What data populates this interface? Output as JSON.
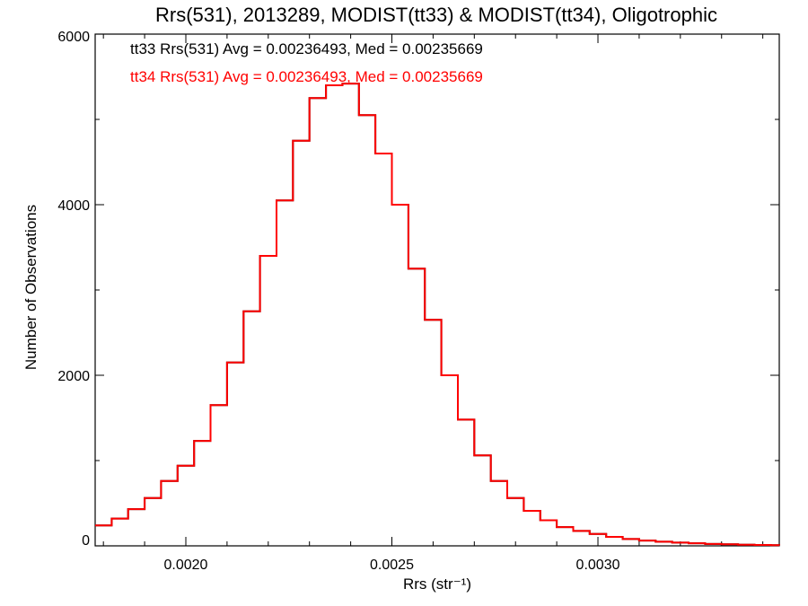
{
  "chart_data": {
    "type": "line",
    "title": "Rrs(531), 2013289, MODIST(tt33) & MODIST(tt34), Oligotrophic",
    "xlabel": "Rrs (str⁻¹)",
    "ylabel": "Number of Observations",
    "xlim": [
      0.00178,
      0.00344
    ],
    "ylim": [
      0,
      6000
    ],
    "x_ticks": [
      0.002,
      0.0025,
      0.003
    ],
    "x_tick_labels": [
      "0.0020",
      "0.0025",
      "0.0030"
    ],
    "y_ticks": [
      0,
      2000,
      4000,
      6000
    ],
    "y_tick_labels": [
      "0",
      "2000",
      "4000",
      "6000"
    ],
    "grid": false,
    "histogram_style": "step",
    "annotations": [
      {
        "text": "tt33 Rrs(531) Avg = 0.00236493, Med = 0.00235669",
        "color": "#000000"
      },
      {
        "text": "tt34 Rrs(531) Avg = 0.00236493, Med = 0.00235669",
        "color": "#ff0000"
      }
    ],
    "x": [
      0.00178,
      0.00182,
      0.00186,
      0.0019,
      0.00194,
      0.00198,
      0.00202,
      0.00206,
      0.0021,
      0.00214,
      0.00218,
      0.00222,
      0.00226,
      0.0023,
      0.00234,
      0.00238,
      0.00242,
      0.00246,
      0.0025,
      0.00254,
      0.00258,
      0.00262,
      0.00266,
      0.0027,
      0.00274,
      0.00278,
      0.00282,
      0.00286,
      0.0029,
      0.00294,
      0.00298,
      0.00302,
      0.00306,
      0.0031,
      0.00314,
      0.00318,
      0.00322,
      0.00326,
      0.0033,
      0.00334,
      0.00338,
      0.00342,
      0.00344
    ],
    "series": [
      {
        "color": "#000000",
        "values": [
          240,
          320,
          430,
          560,
          760,
          940,
          1230,
          1650,
          2150,
          2750,
          3400,
          4050,
          4750,
          5250,
          5400,
          5420,
          5050,
          4600,
          4000,
          3250,
          2650,
          2000,
          1480,
          1060,
          760,
          560,
          410,
          300,
          220,
          175,
          140,
          105,
          80,
          62,
          48,
          38,
          30,
          22,
          18,
          14,
          10,
          8,
          6
        ]
      },
      {
        "color": "#ff0000",
        "values": [
          240,
          320,
          430,
          560,
          760,
          940,
          1230,
          1650,
          2150,
          2750,
          3400,
          4050,
          4750,
          5250,
          5400,
          5420,
          5050,
          4600,
          4000,
          3250,
          2650,
          2000,
          1480,
          1060,
          760,
          560,
          410,
          300,
          220,
          175,
          140,
          105,
          80,
          62,
          48,
          38,
          30,
          22,
          18,
          14,
          10,
          8,
          6
        ]
      }
    ]
  }
}
